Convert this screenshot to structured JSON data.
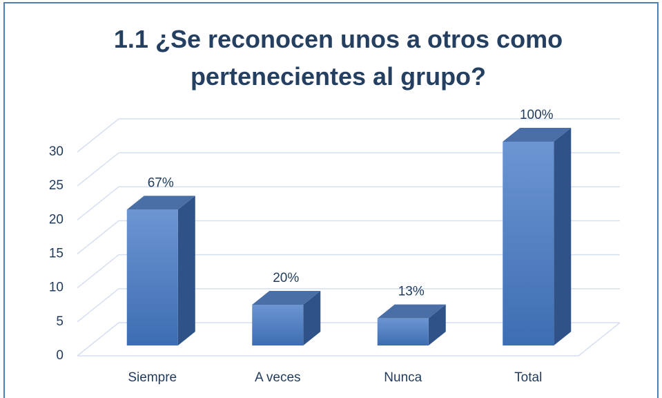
{
  "chart_data": {
    "type": "bar3d",
    "title": "1.1 ¿Se reconocen unos a otros como pertenecientes al grupo?",
    "categories": [
      "Siempre",
      "A veces",
      "Nunca",
      "Total"
    ],
    "values": [
      20,
      6,
      4,
      30
    ],
    "annotations": [
      "67%",
      "20%",
      "13%",
      "100%"
    ],
    "color": "#4f7ec4",
    "ylim": [
      0,
      30
    ],
    "yticks": [
      0,
      5,
      10,
      15,
      20,
      25,
      30
    ],
    "grid": true
  }
}
